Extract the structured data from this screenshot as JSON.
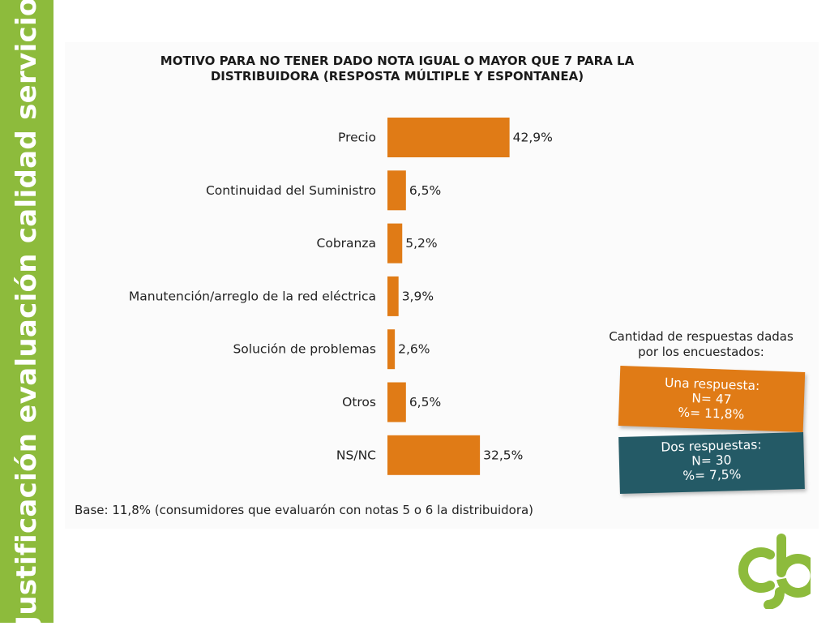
{
  "sidebar": {
    "title": "Justificación evaluación calidad servicio"
  },
  "colors": {
    "accent_green": "#8dbb3c",
    "bar_orange": "#e07b16",
    "card_teal": "#245a66"
  },
  "chart_data": {
    "type": "bar",
    "orientation": "horizontal",
    "title": "MOTIVO PARA NO TENER DADO NOTA IGUAL O MAYOR QUE 7 PARA LA DISTRIBUIDORA (RESPOSTA MÚLTIPLE Y ESPONTANEA)",
    "categories": [
      "Precio",
      "Continuidad del Suministro",
      "Cobranza",
      "Manutención/arreglo de la red eléctrica",
      "Solución de problemas",
      "Otros",
      "NS/NC"
    ],
    "values": [
      42.9,
      6.5,
      5.2,
      3.9,
      2.6,
      6.5,
      32.5
    ],
    "value_labels": [
      "42,9%",
      "6,5%",
      "5,2%",
      "3,9%",
      "2,6%",
      "6,5%",
      "32,5%"
    ],
    "xlim": [
      0,
      45
    ],
    "grid": false,
    "color": "#e07b16"
  },
  "footnote": "Base: 11,8% (consumidores que evaluarón con notas 5 o 6 la distribuidora)",
  "responses": {
    "title": "Cantidad de respuestas dadas por los encuestados:",
    "one": {
      "label": "Una respuesta:",
      "n": "N= 47",
      "pct": "%= 11,8%"
    },
    "two": {
      "label": "Dos respuestas:",
      "n": "N= 30",
      "pct": "%= 7,5%"
    }
  },
  "logo": {
    "icon": "cb-logo-icon"
  }
}
